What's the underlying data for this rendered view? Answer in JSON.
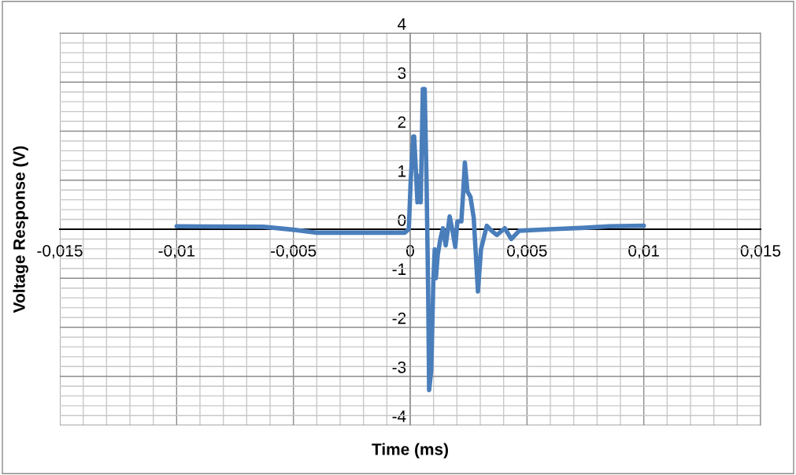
{
  "chart_data": {
    "type": "line",
    "xlabel": "Time (ms)",
    "ylabel": "Voltage Response (V)",
    "xlim": [
      -0.015,
      0.015
    ],
    "ylim": [
      -4,
      4
    ],
    "xticks": [
      {
        "value": -0.015,
        "label": "-0,015"
      },
      {
        "value": -0.01,
        "label": "-0,01"
      },
      {
        "value": -0.005,
        "label": "-0,005"
      },
      {
        "value": 0,
        "label": "0"
      },
      {
        "value": 0.005,
        "label": "0,005"
      },
      {
        "value": 0.01,
        "label": "0,01"
      },
      {
        "value": 0.015,
        "label": "0,015"
      }
    ],
    "yticks": [
      -4,
      -3,
      -2,
      -1,
      0,
      1,
      2,
      3,
      4
    ],
    "grid": true,
    "marker": "none",
    "line_style": "solid",
    "series": [
      {
        "color": "#4a7ebb",
        "x": [
          -0.01,
          -0.0063,
          -0.005,
          -0.00405,
          -0.00068,
          -0.00023,
          -6e-05,
          2e-05,
          0.00013,
          0.00017,
          0.00031,
          0.00039,
          0.00045,
          0.00054,
          0.00062,
          0.0007,
          0.00077,
          0.00081,
          0.0009,
          0.00099,
          0.00105,
          0.0011,
          0.00118,
          0.00129,
          0.0014,
          0.00152,
          0.00169,
          0.0018,
          0.00193,
          0.00202,
          0.00219,
          0.00227,
          0.00234,
          0.00245,
          0.00258,
          0.00272,
          0.0029,
          0.00303,
          0.00328,
          0.00348,
          0.00371,
          0.00405,
          0.00433,
          0.00467,
          0.006,
          0.0075,
          0.0085,
          0.01
        ],
        "values": [
          0.06,
          0.05,
          -0.01,
          -0.07,
          -0.07,
          -0.07,
          0.0,
          0.98,
          1.89,
          1.89,
          0.55,
          1.09,
          0.55,
          2.86,
          2.86,
          0.98,
          -1.32,
          -3.28,
          -2.88,
          -1.06,
          -0.41,
          -1.0,
          -0.52,
          -0.2,
          0.02,
          -0.33,
          0.26,
          0.0,
          -0.36,
          0.16,
          0.16,
          0.77,
          1.36,
          0.77,
          0.66,
          0.23,
          -1.27,
          -0.41,
          0.07,
          -0.03,
          -0.12,
          0.02,
          -0.2,
          -0.03,
          0.0,
          0.03,
          0.06,
          0.07
        ]
      }
    ]
  }
}
